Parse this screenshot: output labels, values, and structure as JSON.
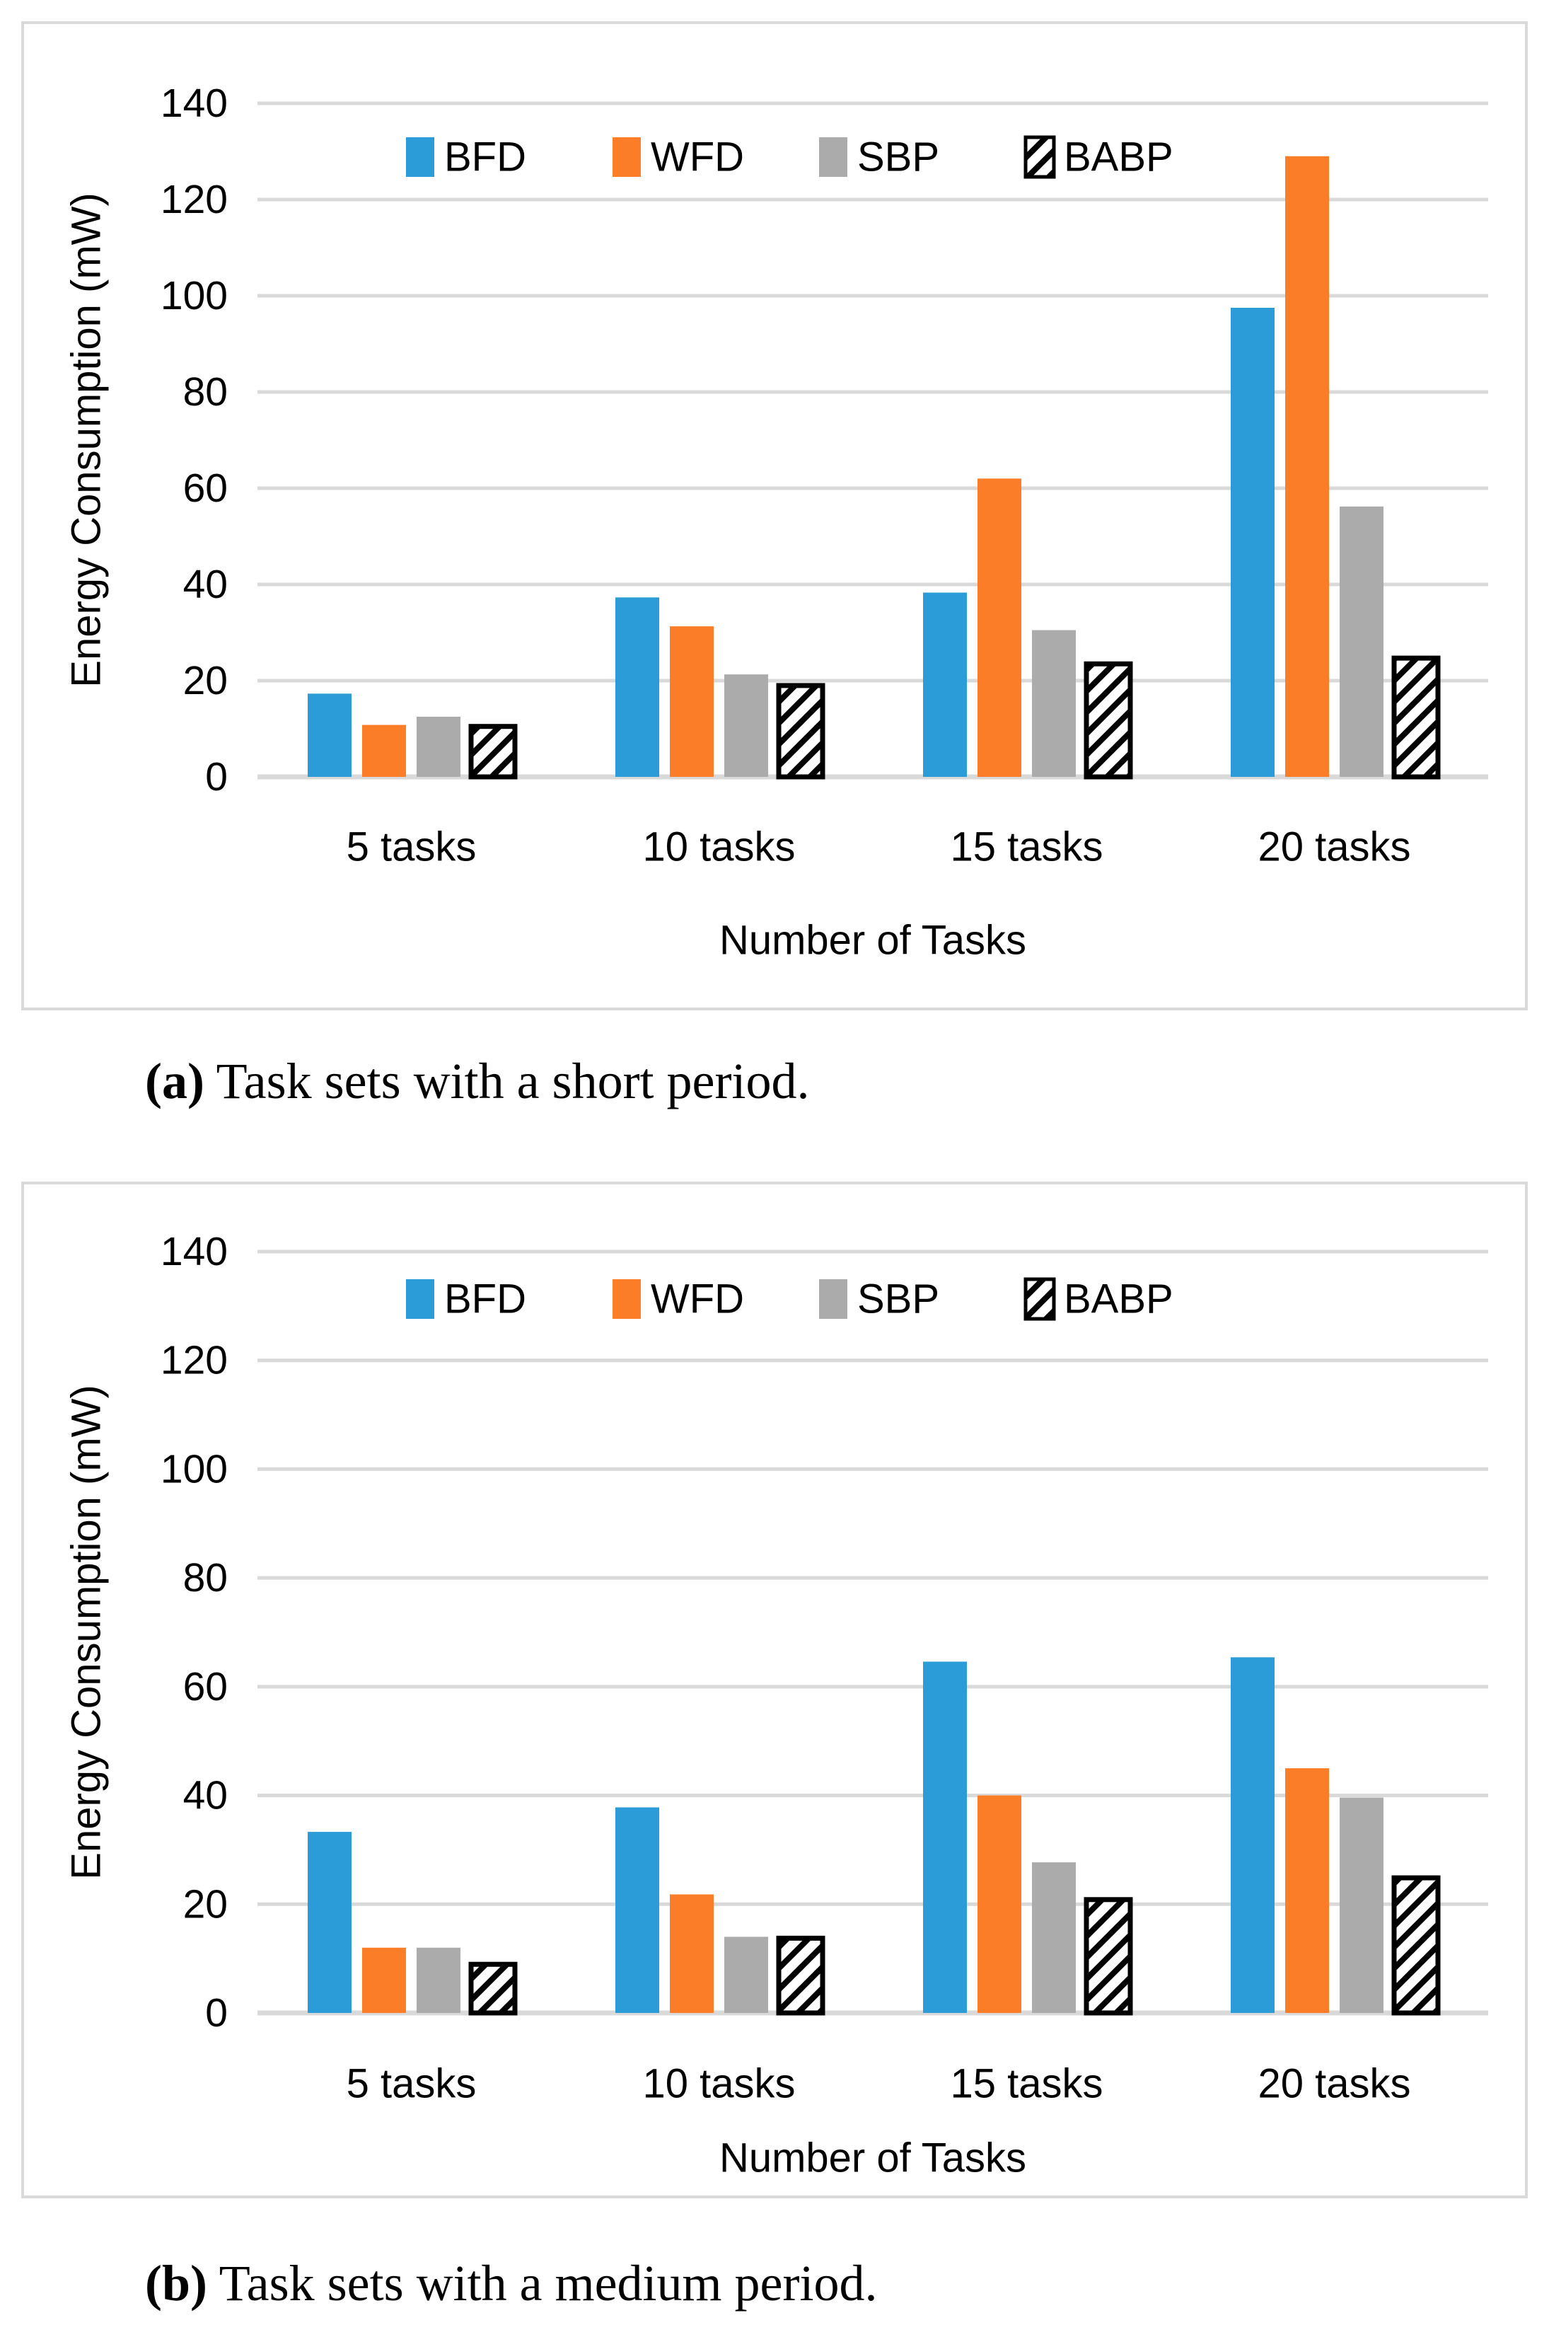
{
  "page": {
    "background": "#ffffff"
  },
  "colors": {
    "gridline": "#d9d9d9",
    "axis_line": "#d9d9d9",
    "panel_border": "#d9d9d9",
    "text": "#000000",
    "bfd_blue": "#2b9cd8",
    "wfd_orange": "#fb7d27",
    "sbp_gray": "#ababab",
    "babp_black": "#000000",
    "babp_hatch_white": "#ffffff"
  },
  "icons": {
    "babp_swatch": "diagonal-hatch-swatch-icon"
  },
  "chart_data": [
    {
      "id": "a",
      "type": "bar",
      "title": "",
      "xlabel": "Number of Tasks",
      "ylabel": "Energy Consumption (mW)",
      "ylim": [
        0,
        140
      ],
      "ytick_step": 20,
      "grid": true,
      "legend_position": "top-center",
      "categories": [
        "5 tasks",
        "10 tasks",
        "15 tasks",
        "20 tasks"
      ],
      "series": [
        {
          "name": "BFD",
          "color": "#2b9cd8",
          "pattern": "solid",
          "values": [
            17.3,
            37.3,
            38.3,
            97.5
          ]
        },
        {
          "name": "WFD",
          "color": "#fb7d27",
          "pattern": "solid",
          "values": [
            10.8,
            31.3,
            62.0,
            129.0
          ]
        },
        {
          "name": "SBP",
          "color": "#ababab",
          "pattern": "solid",
          "values": [
            12.5,
            21.3,
            30.5,
            56.2
          ]
        },
        {
          "name": "BABP",
          "color": "#000000",
          "pattern": "diagonal-hatch",
          "values": [
            11.0,
            19.5,
            24.0,
            25.2
          ]
        }
      ],
      "caption": {
        "label": "(a)",
        "text": " Task sets with a short period."
      }
    },
    {
      "id": "b",
      "type": "bar",
      "title": "",
      "xlabel": "Number of Tasks",
      "ylabel": "Energy Consumption (mW)",
      "ylim": [
        0,
        140
      ],
      "ytick_step": 20,
      "grid": true,
      "legend_position": "top-center",
      "categories": [
        "5 tasks",
        "10 tasks",
        "15 tasks",
        "20 tasks"
      ],
      "series": [
        {
          "name": "BFD",
          "color": "#2b9cd8",
          "pattern": "solid",
          "values": [
            33.3,
            37.8,
            64.6,
            65.4
          ]
        },
        {
          "name": "WFD",
          "color": "#fb7d27",
          "pattern": "solid",
          "values": [
            12.0,
            21.8,
            40.0,
            45.0
          ]
        },
        {
          "name": "SBP",
          "color": "#ababab",
          "pattern": "solid",
          "values": [
            12.0,
            14.0,
            27.7,
            39.6
          ]
        },
        {
          "name": "BABP",
          "color": "#000000",
          "pattern": "diagonal-hatch",
          "values": [
            9.4,
            14.2,
            21.3,
            25.3
          ]
        }
      ],
      "caption": {
        "label": "(b)",
        "text": " Task sets with a medium period."
      }
    }
  ]
}
